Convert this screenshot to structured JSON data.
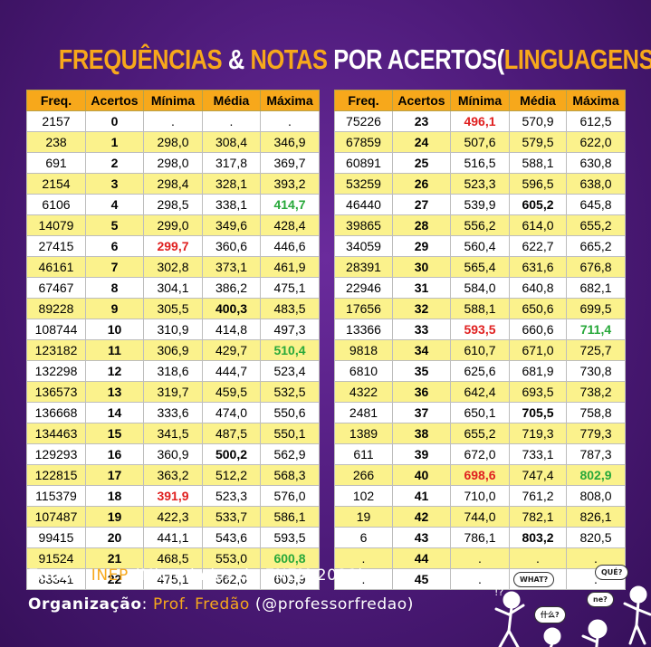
{
  "title": {
    "part1": "FREQUÊNCIAS",
    "amp": "&",
    "part2": "NOTAS",
    "part3": "POR ACERTOS",
    "open": "(",
    "part4": "LINGUAGENS",
    "close": ")"
  },
  "headers": [
    "Freq.",
    "Acertos",
    "Mínima",
    "Média",
    "Máxima"
  ],
  "left_rows": [
    [
      "2157",
      "0",
      ".",
      ".",
      "."
    ],
    [
      "238",
      "1",
      "298,0",
      "308,4",
      "346,9"
    ],
    [
      "691",
      "2",
      "298,0",
      "317,8",
      "369,7"
    ],
    [
      "2154",
      "3",
      "298,4",
      "328,1",
      "393,2"
    ],
    [
      "6106",
      "4",
      "298,5",
      "338,1",
      "414,7"
    ],
    [
      "14079",
      "5",
      "299,0",
      "349,6",
      "428,4"
    ],
    [
      "27415",
      "6",
      "299,7",
      "360,6",
      "446,6"
    ],
    [
      "46161",
      "7",
      "302,8",
      "373,1",
      "461,9"
    ],
    [
      "67467",
      "8",
      "304,1",
      "386,2",
      "475,1"
    ],
    [
      "89228",
      "9",
      "305,5",
      "400,3",
      "483,5"
    ],
    [
      "108744",
      "10",
      "310,9",
      "414,8",
      "497,3"
    ],
    [
      "123182",
      "11",
      "306,9",
      "429,7",
      "510,4"
    ],
    [
      "132298",
      "12",
      "318,6",
      "444,7",
      "523,4"
    ],
    [
      "136573",
      "13",
      "319,7",
      "459,5",
      "532,5"
    ],
    [
      "136668",
      "14",
      "333,6",
      "474,0",
      "550,6"
    ],
    [
      "134463",
      "15",
      "341,5",
      "487,5",
      "550,1"
    ],
    [
      "129293",
      "16",
      "360,9",
      "500,2",
      "562,9"
    ],
    [
      "122815",
      "17",
      "363,2",
      "512,2",
      "568,3"
    ],
    [
      "115379",
      "18",
      "391,9",
      "523,3",
      "576,0"
    ],
    [
      "107487",
      "19",
      "422,3",
      "533,7",
      "586,1"
    ],
    [
      "99415",
      "20",
      "441,1",
      "543,6",
      "593,5"
    ],
    [
      "91524",
      "21",
      "468,5",
      "553,0",
      "600,8"
    ],
    [
      "83341",
      "22",
      "475,1",
      "562,0",
      "609,9"
    ]
  ],
  "right_rows": [
    [
      "75226",
      "23",
      "496,1",
      "570,9",
      "612,5"
    ],
    [
      "67859",
      "24",
      "507,6",
      "579,5",
      "622,0"
    ],
    [
      "60891",
      "25",
      "516,5",
      "588,1",
      "630,8"
    ],
    [
      "53259",
      "26",
      "523,3",
      "596,5",
      "638,0"
    ],
    [
      "46440",
      "27",
      "539,9",
      "605,2",
      "645,8"
    ],
    [
      "39865",
      "28",
      "556,2",
      "614,0",
      "655,2"
    ],
    [
      "34059",
      "29",
      "560,4",
      "622,7",
      "665,2"
    ],
    [
      "28391",
      "30",
      "565,4",
      "631,6",
      "676,8"
    ],
    [
      "22946",
      "31",
      "584,0",
      "640,8",
      "682,1"
    ],
    [
      "17656",
      "32",
      "588,1",
      "650,6",
      "699,5"
    ],
    [
      "13366",
      "33",
      "593,5",
      "660,6",
      "711,4"
    ],
    [
      "9818",
      "34",
      "610,7",
      "671,0",
      "725,7"
    ],
    [
      "6810",
      "35",
      "625,6",
      "681,9",
      "730,8"
    ],
    [
      "4322",
      "36",
      "642,4",
      "693,5",
      "738,2"
    ],
    [
      "2481",
      "37",
      "650,1",
      "705,5",
      "758,8"
    ],
    [
      "1389",
      "38",
      "655,2",
      "719,3",
      "779,3"
    ],
    [
      "611",
      "39",
      "672,0",
      "733,1",
      "787,3"
    ],
    [
      "266",
      "40",
      "698,6",
      "747,4",
      "802,9"
    ],
    [
      "102",
      "41",
      "710,0",
      "761,2",
      "808,0"
    ],
    [
      "19",
      "42",
      "744,0",
      "782,1",
      "826,1"
    ],
    [
      "6",
      "43",
      "786,1",
      "803,2",
      "820,5"
    ],
    [
      ".",
      "44",
      ".",
      ".",
      "."
    ],
    [
      ".",
      "45",
      ".",
      ".",
      "."
    ]
  ],
  "highlights": {
    "left": {
      "4": {
        "4": "grn"
      },
      "6": {
        "2": "red"
      },
      "9": {
        "3": "bold"
      },
      "11": {
        "4": "grn"
      },
      "16": {
        "3": "bold"
      },
      "18": {
        "2": "red"
      },
      "21": {
        "4": "grn"
      }
    },
    "right": {
      "0": {
        "2": "red"
      },
      "4": {
        "3": "bold"
      },
      "10": {
        "2": "red",
        "4": "grn"
      },
      "14": {
        "3": "bold"
      },
      "17": {
        "2": "red",
        "4": "grn"
      },
      "20": {
        "3": "bold"
      }
    }
  },
  "colors": {
    "accent": "#f7a81b",
    "row_yellow": "#fbf28c",
    "red": "#e02020",
    "green": "#27a83a",
    "background": "#4c1a78"
  },
  "footer": {
    "source_label": "Fonte",
    "source_sep": ": ",
    "source_org": "INEP",
    "source_rest": " (Microdados do ENEM 2021)",
    "org_label": "Organização",
    "org_sep": ": ",
    "org_name": "Prof. Fredão",
    "org_handle": " (@professorfredao)"
  },
  "decoration": {
    "bubble1": "WHAT?",
    "bubble2": "QUÉ?",
    "bubble3": "什么?",
    "bubble4": "ne?",
    "marks": "!?"
  }
}
